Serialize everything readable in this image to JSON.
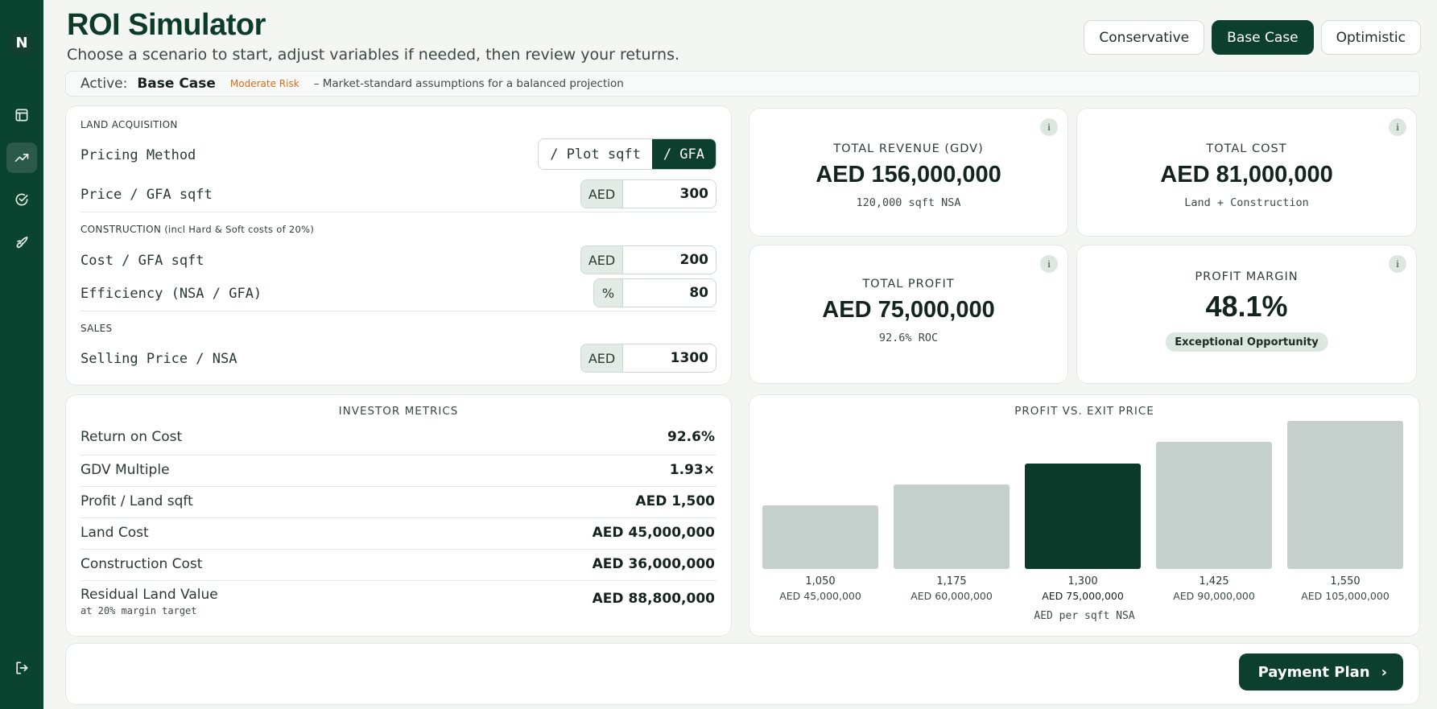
{
  "app": {
    "logo_letter": "N"
  },
  "header": {
    "title": "ROI Simulator",
    "subtitle": "Choose a scenario to start, adjust variables if needed, then review your returns."
  },
  "scenarios": [
    {
      "label": "Conservative",
      "active": false
    },
    {
      "label": "Base Case",
      "active": true
    },
    {
      "label": "Optimistic",
      "active": false
    }
  ],
  "active_bar": {
    "label": "Active:",
    "scenario": "Base Case",
    "risk": "Moderate Risk",
    "description": "– Market-standard assumptions for a balanced projection"
  },
  "inputs": {
    "land_section": "LAND ACQUISITION",
    "pricing_method_label": "Pricing Method",
    "pricing_options": [
      "/ Plot sqft",
      "/ GFA"
    ],
    "pricing_selected": "/ GFA",
    "price_label": "Price / GFA sqft",
    "price_unit": "AED",
    "price_value": "300",
    "construction_section": "CONSTRUCTION",
    "construction_note": "(incl Hard & Soft costs of 20%)",
    "cost_label": "Cost / GFA sqft",
    "cost_unit": "AED",
    "cost_value": "200",
    "efficiency_label": "Efficiency (NSA / GFA)",
    "efficiency_unit": "%",
    "efficiency_value": "80",
    "sales_section": "SALES",
    "selling_label": "Selling Price / NSA",
    "selling_unit": "AED",
    "selling_value": "1300"
  },
  "kpis": {
    "revenue": {
      "label": "TOTAL REVENUE (GDV)",
      "value": "AED 156,000,000",
      "sub": "120,000 sqft NSA"
    },
    "cost": {
      "label": "TOTAL COST",
      "value": "AED 81,000,000",
      "sub": "Land + Construction"
    },
    "profit": {
      "label": "TOTAL PROFIT",
      "value": "AED 75,000,000",
      "sub": "92.6% ROC"
    },
    "margin": {
      "label": "PROFIT MARGIN",
      "value": "48.1%",
      "badge": "Exceptional Opportunity"
    },
    "info_glyph": "i"
  },
  "metrics": {
    "title": "INVESTOR METRICS",
    "rows": [
      {
        "label": "Return on Cost",
        "value": "92.6%"
      },
      {
        "label": "GDV Multiple",
        "value": "1.93×"
      },
      {
        "label": "Profit / Land sqft",
        "value": "AED 1,500"
      },
      {
        "label": "Land Cost",
        "value": "AED 45,000,000"
      },
      {
        "label": "Construction Cost",
        "value": "AED 36,000,000"
      },
      {
        "label": "Residual Land Value",
        "value": "AED 88,800,000",
        "sub": "at 20% margin target"
      }
    ]
  },
  "chart_data": {
    "type": "bar",
    "title": "PROFIT VS. EXIT PRICE",
    "xlabel": "AED per sqft NSA",
    "categories": [
      "1,050",
      "1,175",
      "1,300",
      "1,425",
      "1,550"
    ],
    "value_labels": [
      "AED 45,000,000",
      "AED 60,000,000",
      "AED 75,000,000",
      "AED 90,000,000",
      "AED 105,000,000"
    ],
    "values": [
      45000000,
      60000000,
      75000000,
      90000000,
      105000000
    ],
    "highlight_index": 2,
    "colors": {
      "bar": "#c5cfcb",
      "highlight": "#0b3a2a"
    }
  },
  "footer": {
    "payment_button": "Payment Plan"
  }
}
